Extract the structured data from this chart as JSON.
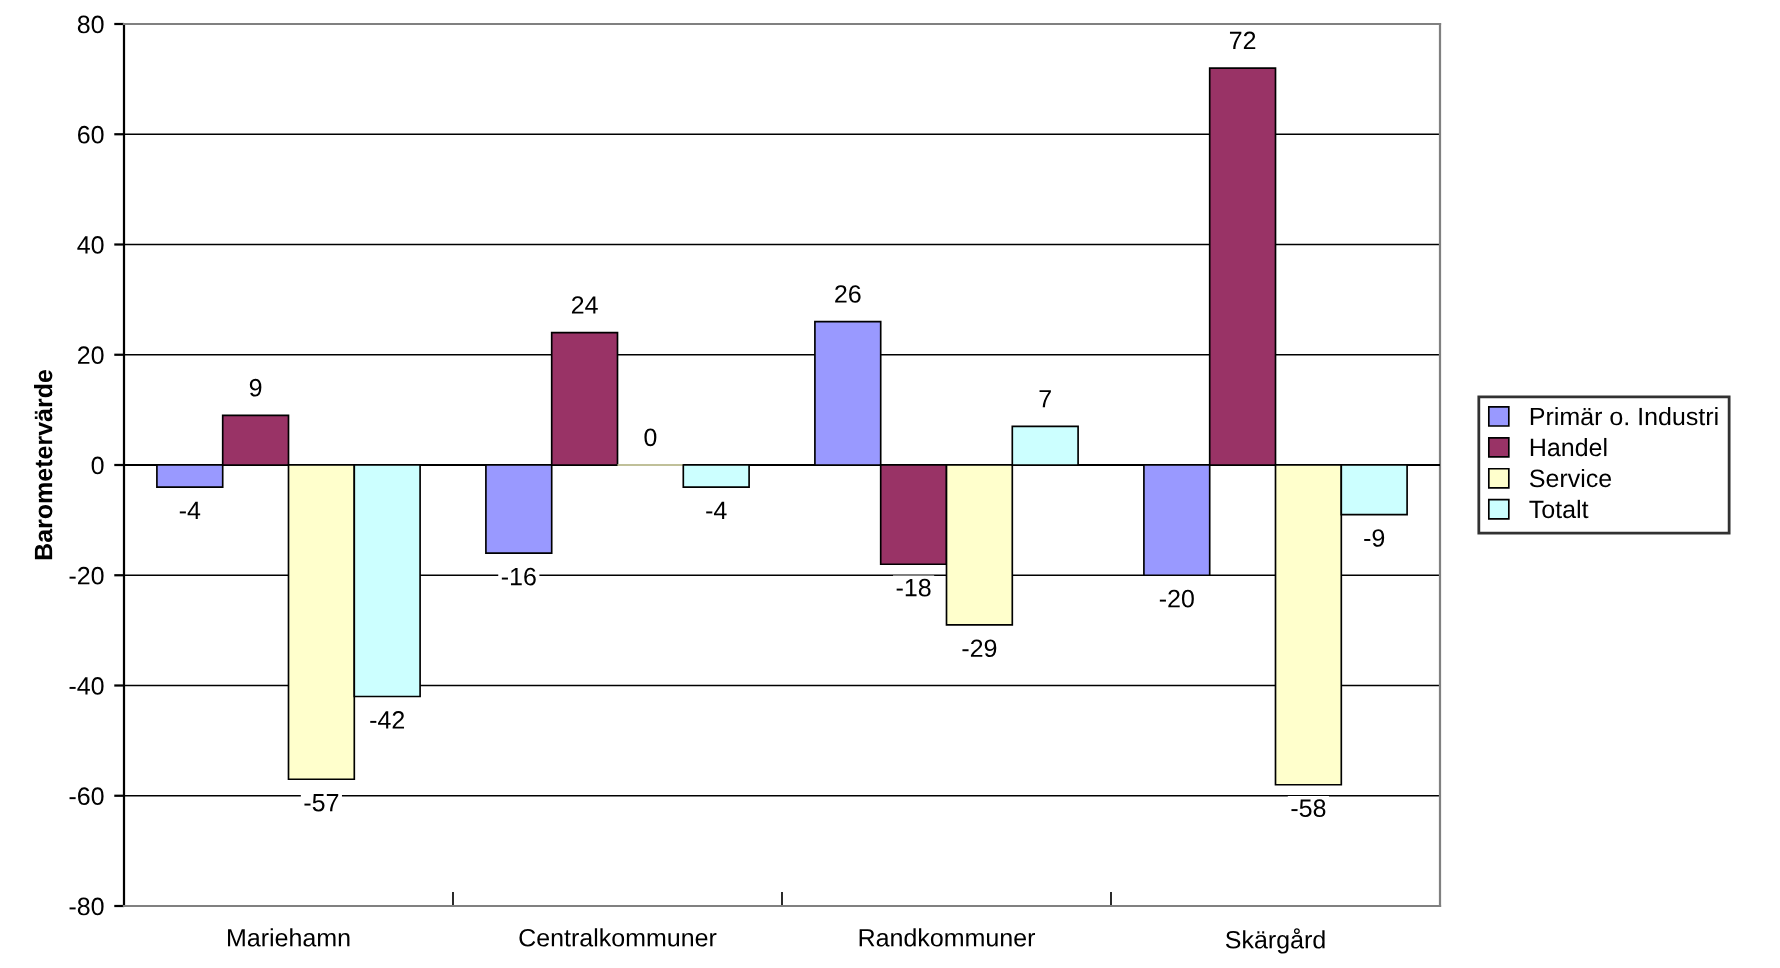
{
  "chart_data": {
    "type": "bar",
    "ylabel": "Barometervärde",
    "categories": [
      "Mariehamn",
      "Centralkommuner",
      "Randkommuner",
      "Skärgård"
    ],
    "series": [
      {
        "name": "Primär o. Industri",
        "color": "#9999ff",
        "values": [
          -4,
          -16,
          26,
          -20
        ]
      },
      {
        "name": "Handel",
        "color": "#993366",
        "values": [
          9,
          24,
          -18,
          72
        ]
      },
      {
        "name": "Service",
        "color": "#ffffcc",
        "values": [
          -57,
          0,
          -29,
          -58
        ]
      },
      {
        "name": "Totalt",
        "color": "#ccffff",
        "values": [
          -42,
          -4,
          7,
          -9
        ]
      }
    ],
    "ylim": [
      -80,
      80
    ],
    "yticks": [
      -80,
      -60,
      -40,
      -20,
      0,
      20,
      40,
      60,
      80
    ],
    "grid": "y",
    "legend": "right",
    "data_labels": true
  }
}
